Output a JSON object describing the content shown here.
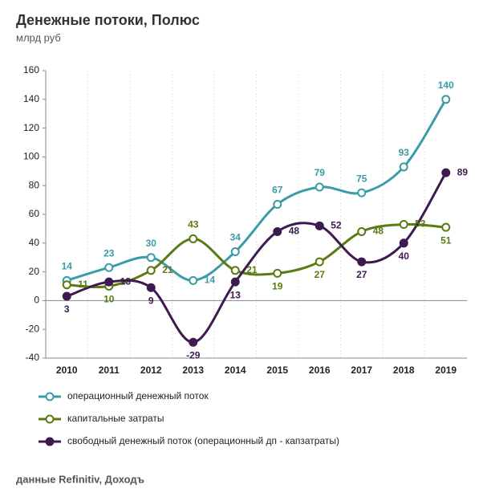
{
  "chart_data": {
    "type": "line",
    "title": "Денежные потоки, Полюс",
    "subtitle": "млрд руб",
    "source": "данные Refinitiv, Доходъ",
    "categories": [
      "2010",
      "2011",
      "2012",
      "2013",
      "2014",
      "2015",
      "2016",
      "2017",
      "2018",
      "2019"
    ],
    "series": [
      {
        "name": "операционный денежный поток",
        "color": "#3a9ca6",
        "values": [
          14,
          23,
          30,
          14,
          34,
          67,
          79,
          75,
          93,
          140
        ]
      },
      {
        "name": "капитальные затраты",
        "color": "#5b7a12",
        "values": [
          11,
          10,
          21,
          43,
          21,
          19,
          27,
          48,
          53,
          51
        ]
      },
      {
        "name": "свободный денежный поток (операционный дп - капзатраты)",
        "color": "#3d1a4f",
        "values": [
          3,
          13,
          9,
          -29,
          13,
          48,
          52,
          27,
          40,
          89
        ]
      }
    ],
    "ylim": [
      -40,
      160
    ],
    "yticks": [
      -40,
      -20,
      0,
      20,
      40,
      60,
      80,
      100,
      120,
      140,
      160
    ],
    "smooth": true
  }
}
